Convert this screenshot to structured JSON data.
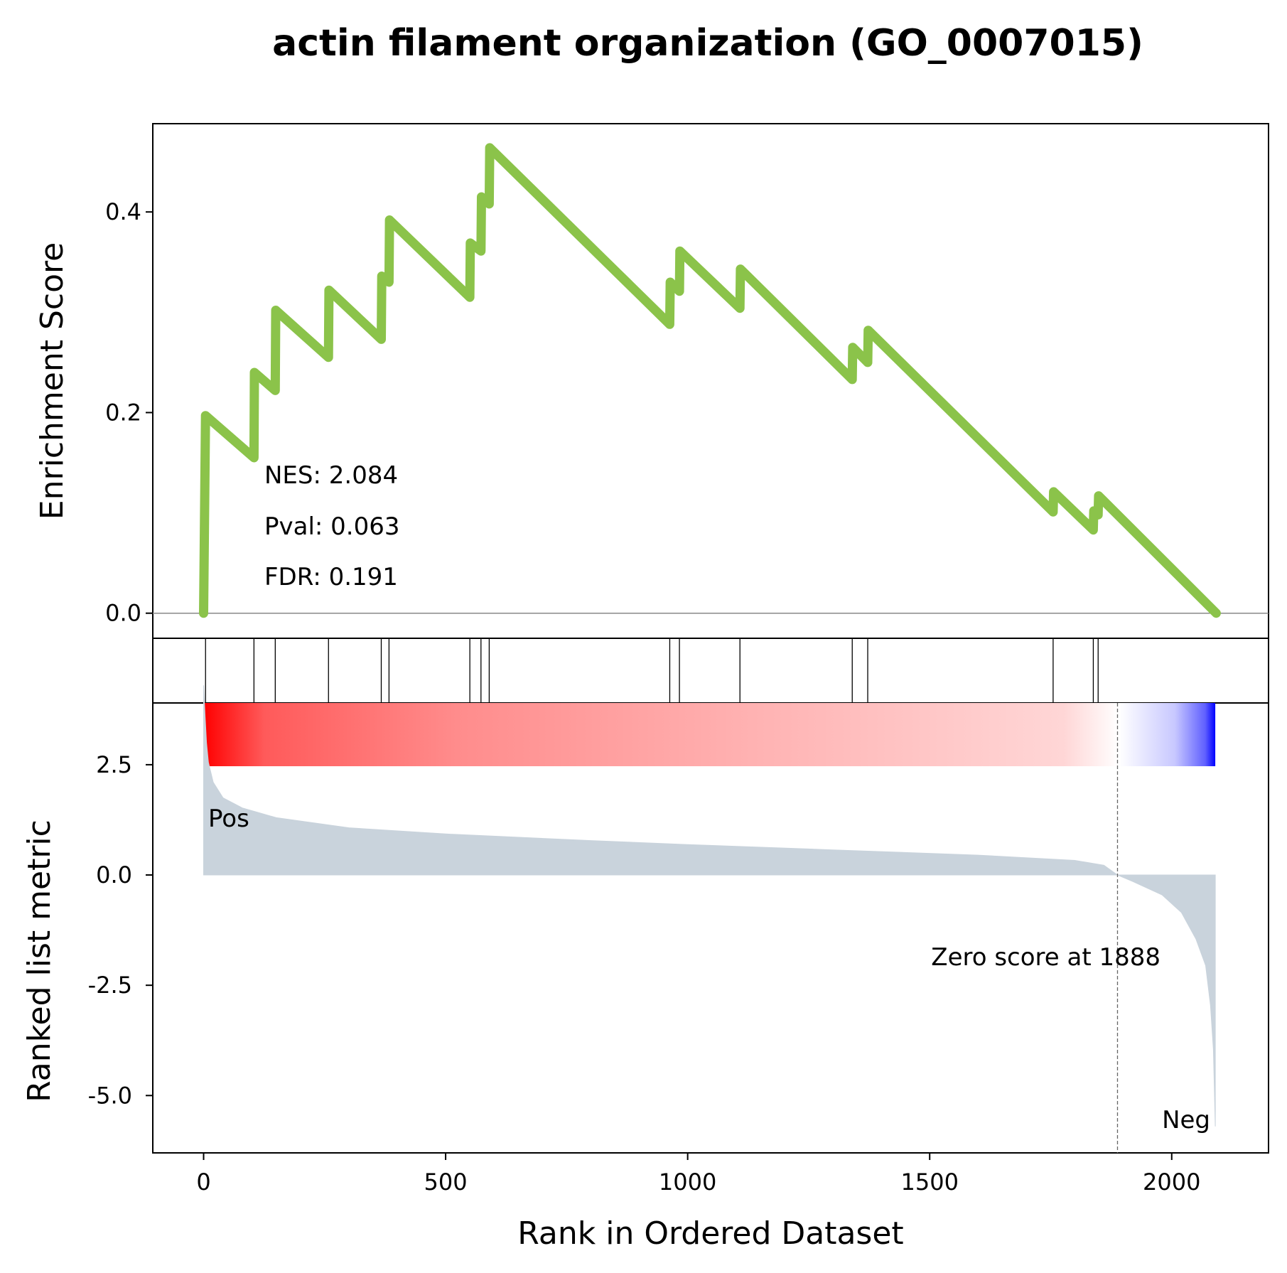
{
  "chart_data": {
    "type": "line",
    "title": "actin filament organization (GO_0007015)",
    "xlabel": "Rank in Ordered Dataset",
    "xlim": [
      -105,
      2200
    ],
    "x_ticks": [
      "0",
      "500",
      "1000",
      "1500",
      "2000"
    ],
    "x_tick_values": [
      0,
      500,
      1000,
      1500,
      2000
    ],
    "es_panel": {
      "ylabel": "Enrichment Score",
      "ylim": [
        -0.025,
        0.488
      ],
      "y_ticks": [
        "0.0",
        "0.2",
        "0.4"
      ],
      "y_tick_values": [
        0,
        0.2,
        0.4
      ],
      "line_color": "#8bc34a",
      "running_es": [
        {
          "x": 0,
          "y": 0.0
        },
        {
          "x": 4,
          "y": 0.197
        },
        {
          "x": 104,
          "y": 0.155
        },
        {
          "x": 105,
          "y": 0.24
        },
        {
          "x": 148,
          "y": 0.222
        },
        {
          "x": 149,
          "y": 0.302
        },
        {
          "x": 258,
          "y": 0.255
        },
        {
          "x": 259,
          "y": 0.322
        },
        {
          "x": 367,
          "y": 0.273
        },
        {
          "x": 368,
          "y": 0.336
        },
        {
          "x": 383,
          "y": 0.33
        },
        {
          "x": 384,
          "y": 0.392
        },
        {
          "x": 550,
          "y": 0.315
        },
        {
          "x": 551,
          "y": 0.369
        },
        {
          "x": 573,
          "y": 0.361
        },
        {
          "x": 574,
          "y": 0.415
        },
        {
          "x": 590,
          "y": 0.408
        },
        {
          "x": 591,
          "y": 0.464
        },
        {
          "x": 963,
          "y": 0.288
        },
        {
          "x": 964,
          "y": 0.33
        },
        {
          "x": 983,
          "y": 0.321
        },
        {
          "x": 984,
          "y": 0.361
        },
        {
          "x": 1108,
          "y": 0.304
        },
        {
          "x": 1109,
          "y": 0.343
        },
        {
          "x": 1340,
          "y": 0.233
        },
        {
          "x": 1341,
          "y": 0.265
        },
        {
          "x": 1372,
          "y": 0.25
        },
        {
          "x": 1373,
          "y": 0.282
        },
        {
          "x": 1755,
          "y": 0.101
        },
        {
          "x": 1756,
          "y": 0.121
        },
        {
          "x": 1838,
          "y": 0.083
        },
        {
          "x": 1839,
          "y": 0.102
        },
        {
          "x": 1848,
          "y": 0.098
        },
        {
          "x": 1849,
          "y": 0.117
        },
        {
          "x": 2092,
          "y": 0.0
        }
      ],
      "annotations": [
        "NES: 2.084",
        "Pval: 0.063",
        "FDR: 0.191"
      ]
    },
    "hits_panel": {
      "hit_ranks": [
        4,
        104,
        148,
        258,
        367,
        383,
        550,
        573,
        590,
        963,
        983,
        1108,
        1340,
        1372,
        1755,
        1838,
        1848
      ]
    },
    "ranked_panel": {
      "ylabel": "Ranked list metric",
      "ylim": [
        -6.3,
        3.9
      ],
      "y_ticks": [
        "2.5",
        "0.0",
        "-2.5",
        "-5.0"
      ],
      "y_tick_values": [
        2.5,
        0,
        -2.5,
        -5.0
      ],
      "fill_color": "#c9d3dc",
      "metric_curve": [
        {
          "x": 0,
          "y": 4.3
        },
        {
          "x": 3,
          "y": 3.6
        },
        {
          "x": 6,
          "y": 3.0
        },
        {
          "x": 10,
          "y": 2.55
        },
        {
          "x": 20,
          "y": 2.1
        },
        {
          "x": 40,
          "y": 1.75
        },
        {
          "x": 80,
          "y": 1.52
        },
        {
          "x": 150,
          "y": 1.3
        },
        {
          "x": 300,
          "y": 1.07
        },
        {
          "x": 500,
          "y": 0.93
        },
        {
          "x": 800,
          "y": 0.78
        },
        {
          "x": 1000,
          "y": 0.69
        },
        {
          "x": 1300,
          "y": 0.57
        },
        {
          "x": 1600,
          "y": 0.45
        },
        {
          "x": 1800,
          "y": 0.33
        },
        {
          "x": 1860,
          "y": 0.22
        },
        {
          "x": 1888,
          "y": 0.0
        },
        {
          "x": 1920,
          "y": -0.15
        },
        {
          "x": 1980,
          "y": -0.45
        },
        {
          "x": 2020,
          "y": -0.85
        },
        {
          "x": 2050,
          "y": -1.45
        },
        {
          "x": 2070,
          "y": -2.05
        },
        {
          "x": 2080,
          "y": -2.95
        },
        {
          "x": 2086,
          "y": -3.95
        },
        {
          "x": 2090,
          "y": -5.7
        }
      ],
      "zero_cross": 1888,
      "zero_label": "Zero score at 1888",
      "pos_label": "Pos",
      "neg_label": "Neg",
      "pos_color": "#ff0000",
      "neg_color": "#0000ff",
      "gradient_colors": [
        "#ff0000",
        "#ff5a5a",
        "#ff8c8c",
        "#ffb3b3",
        "#ffd6d6",
        "#ffffff",
        "#c8c8ff",
        "#0000ff"
      ]
    }
  }
}
